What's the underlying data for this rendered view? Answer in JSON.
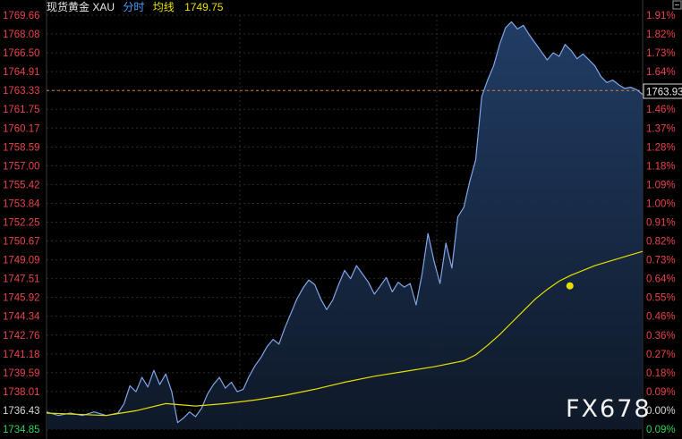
{
  "header": {
    "instrument": "现货黄金 XAU",
    "mode": "分时",
    "avg_label": "均线",
    "avg_value": "1749.75"
  },
  "current_price_tag": "1763.93",
  "watermark": "FX678",
  "colors": {
    "background": "#000000",
    "price_line": "#7fa6e8",
    "price_fill": "#1a2d4a",
    "avg_line": "#e6e000",
    "grid": "#2a2a2a",
    "up_text": "#e8434a",
    "down_text": "#2fd35a",
    "ref_dash": "#d8803a"
  },
  "chart_data": {
    "type": "line",
    "ylim": [
      1734.85,
      1769.66
    ],
    "y_ticks_left": [
      "1769.66",
      "1768.08",
      "1766.50",
      "1764.91",
      "1763.33",
      "1761.75",
      "1760.17",
      "1758.59",
      "1757.00",
      "1755.42",
      "1753.84",
      "1752.25",
      "1750.67",
      "1749.09",
      "1747.51",
      "1745.92",
      "1744.34",
      "1742.76",
      "1741.18",
      "1739.59",
      "1738.01",
      "1736.43",
      "1734.85"
    ],
    "y_ticks_right": [
      "1.91%",
      "1.82%",
      "1.73%",
      "1.64%",
      "",
      "1.46%",
      "1.37%",
      "1.28%",
      "1.18%",
      "1.09%",
      "1.00%",
      "0.91%",
      "0.82%",
      "0.73%",
      "0.64%",
      "0.55%",
      "0.46%",
      "0.36%",
      "0.27%",
      "0.18%",
      "0.09%",
      "0.00%",
      "0.09%"
    ],
    "x_range": [
      0,
      100
    ],
    "series": [
      {
        "role": "price",
        "points": [
          [
            0,
            1736.3
          ],
          [
            2,
            1736.0
          ],
          [
            4,
            1736.2
          ],
          [
            6,
            1736.0
          ],
          [
            8,
            1736.3
          ],
          [
            10,
            1736.0
          ],
          [
            12,
            1736.2
          ],
          [
            13,
            1737.0
          ],
          [
            14,
            1738.5
          ],
          [
            15,
            1738.0
          ],
          [
            16,
            1739.2
          ],
          [
            17,
            1738.4
          ],
          [
            18,
            1739.8
          ],
          [
            19,
            1738.6
          ],
          [
            20,
            1739.5
          ],
          [
            21,
            1738.0
          ],
          [
            22,
            1735.4
          ],
          [
            23,
            1735.8
          ],
          [
            24,
            1736.3
          ],
          [
            25,
            1735.9
          ],
          [
            26,
            1736.6
          ],
          [
            27,
            1737.8
          ],
          [
            28,
            1738.6
          ],
          [
            29,
            1739.2
          ],
          [
            30,
            1738.3
          ],
          [
            31,
            1738.8
          ],
          [
            32,
            1738.0
          ],
          [
            33,
            1738.2
          ],
          [
            34,
            1739.3
          ],
          [
            35,
            1740.2
          ],
          [
            36,
            1740.9
          ],
          [
            37,
            1741.8
          ],
          [
            38,
            1742.4
          ],
          [
            39,
            1742.0
          ],
          [
            40,
            1743.4
          ],
          [
            41,
            1744.6
          ],
          [
            42,
            1745.8
          ],
          [
            43,
            1746.7
          ],
          [
            44,
            1747.4
          ],
          [
            45,
            1747.0
          ],
          [
            46,
            1745.8
          ],
          [
            47,
            1744.9
          ],
          [
            48,
            1745.7
          ],
          [
            49,
            1747.0
          ],
          [
            50,
            1748.2
          ],
          [
            51,
            1747.5
          ],
          [
            52,
            1748.6
          ],
          [
            53,
            1747.9
          ],
          [
            54,
            1747.2
          ],
          [
            55,
            1746.2
          ],
          [
            56,
            1746.9
          ],
          [
            57,
            1747.6
          ],
          [
            58,
            1746.4
          ],
          [
            59,
            1747.2
          ],
          [
            60,
            1746.8
          ],
          [
            61,
            1747.1
          ],
          [
            62,
            1745.3
          ],
          [
            63,
            1747.9
          ],
          [
            64,
            1751.3
          ],
          [
            65,
            1749.0
          ],
          [
            66,
            1747.1
          ],
          [
            67,
            1750.5
          ],
          [
            68,
            1748.4
          ],
          [
            69,
            1752.7
          ],
          [
            70,
            1753.5
          ],
          [
            71,
            1755.7
          ],
          [
            72,
            1757.5
          ],
          [
            73,
            1762.8
          ],
          [
            74,
            1764.2
          ],
          [
            75,
            1765.4
          ],
          [
            76,
            1767.2
          ],
          [
            77,
            1768.6
          ],
          [
            78,
            1769.1
          ],
          [
            79,
            1768.5
          ],
          [
            80,
            1768.8
          ],
          [
            81,
            1768.0
          ],
          [
            82,
            1767.3
          ],
          [
            83,
            1766.6
          ],
          [
            84,
            1765.9
          ],
          [
            85,
            1766.5
          ],
          [
            86,
            1766.2
          ],
          [
            87,
            1767.2
          ],
          [
            88,
            1766.7
          ],
          [
            89,
            1766.0
          ],
          [
            90,
            1766.4
          ],
          [
            91,
            1765.9
          ],
          [
            92,
            1765.4
          ],
          [
            93,
            1764.5
          ],
          [
            94,
            1764.0
          ],
          [
            95,
            1764.2
          ],
          [
            96,
            1763.8
          ],
          [
            97,
            1763.5
          ],
          [
            98,
            1763.6
          ],
          [
            99,
            1763.4
          ],
          [
            100,
            1763.0
          ]
        ]
      },
      {
        "role": "average",
        "points": [
          [
            0,
            1736.2
          ],
          [
            10,
            1736.0
          ],
          [
            15,
            1736.4
          ],
          [
            20,
            1737.0
          ],
          [
            25,
            1736.8
          ],
          [
            30,
            1737.0
          ],
          [
            35,
            1737.3
          ],
          [
            40,
            1737.7
          ],
          [
            45,
            1738.2
          ],
          [
            50,
            1738.8
          ],
          [
            55,
            1739.3
          ],
          [
            60,
            1739.7
          ],
          [
            65,
            1740.1
          ],
          [
            70,
            1740.6
          ],
          [
            72,
            1741.1
          ],
          [
            74,
            1741.9
          ],
          [
            76,
            1742.8
          ],
          [
            78,
            1743.8
          ],
          [
            80,
            1744.8
          ],
          [
            82,
            1745.8
          ],
          [
            84,
            1746.6
          ],
          [
            86,
            1747.3
          ],
          [
            88,
            1747.8
          ],
          [
            90,
            1748.2
          ],
          [
            92,
            1748.6
          ],
          [
            94,
            1748.9
          ],
          [
            96,
            1749.2
          ],
          [
            98,
            1749.5
          ],
          [
            100,
            1749.8
          ]
        ]
      }
    ],
    "reference_line": 1763.33,
    "marker": {
      "x": 87.8,
      "y": 1746.9
    }
  }
}
